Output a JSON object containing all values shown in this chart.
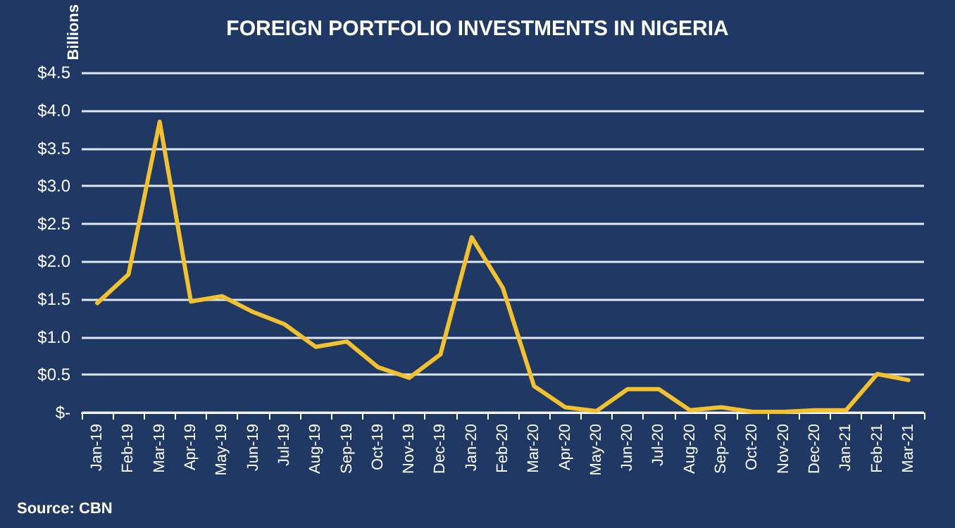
{
  "chart_data": {
    "type": "line",
    "title": "FOREIGN PORTFOLIO INVESTMENTS IN NIGERIA",
    "ylabel": "Billions",
    "annotations": [
      "Source: CBN"
    ],
    "categories": [
      "Jan-19",
      "Feb-19",
      "Mar-19",
      "Apr-19",
      "May-19",
      "Jun-19",
      "Jul-19",
      "Aug-19",
      "Sep-19",
      "Oct-19",
      "Nov-19",
      "Dec-19",
      "Jan-20",
      "Feb-20",
      "Mar-20",
      "Apr-20",
      "May-20",
      "Jun-20",
      "Jul-20",
      "Aug-20",
      "Sep-20",
      "Oct-20",
      "Nov-20",
      "Dec-20",
      "Jan-21",
      "Feb-21",
      "Mar-21"
    ],
    "series": [
      {
        "color": "#f2c12e",
        "values": [
          1.45,
          1.83,
          3.85,
          1.47,
          1.54,
          1.33,
          1.17,
          0.87,
          0.94,
          0.6,
          0.46,
          0.77,
          2.32,
          1.65,
          0.35,
          0.07,
          0.02,
          0.31,
          0.31,
          0.03,
          0.07,
          0.01,
          0.01,
          0.03,
          0.03,
          0.51,
          0.43
        ]
      }
    ],
    "ylim": [
      0,
      4.5
    ],
    "yticks": [
      {
        "value": 0,
        "label": "$-"
      },
      {
        "value": 0.5,
        "label": "$0.5"
      },
      {
        "value": 1,
        "label": "$1.0"
      },
      {
        "value": 1.5,
        "label": "$1.5"
      },
      {
        "value": 2,
        "label": "$2.0"
      },
      {
        "value": 2.5,
        "label": "$2.5"
      },
      {
        "value": 3,
        "label": "$3.0"
      },
      {
        "value": 3.5,
        "label": "$3.5"
      },
      {
        "value": 4,
        "label": "$4.0"
      },
      {
        "value": 4.5,
        "label": "$4.5"
      }
    ],
    "grid": "y",
    "marker": "none",
    "line_style": "solid"
  }
}
